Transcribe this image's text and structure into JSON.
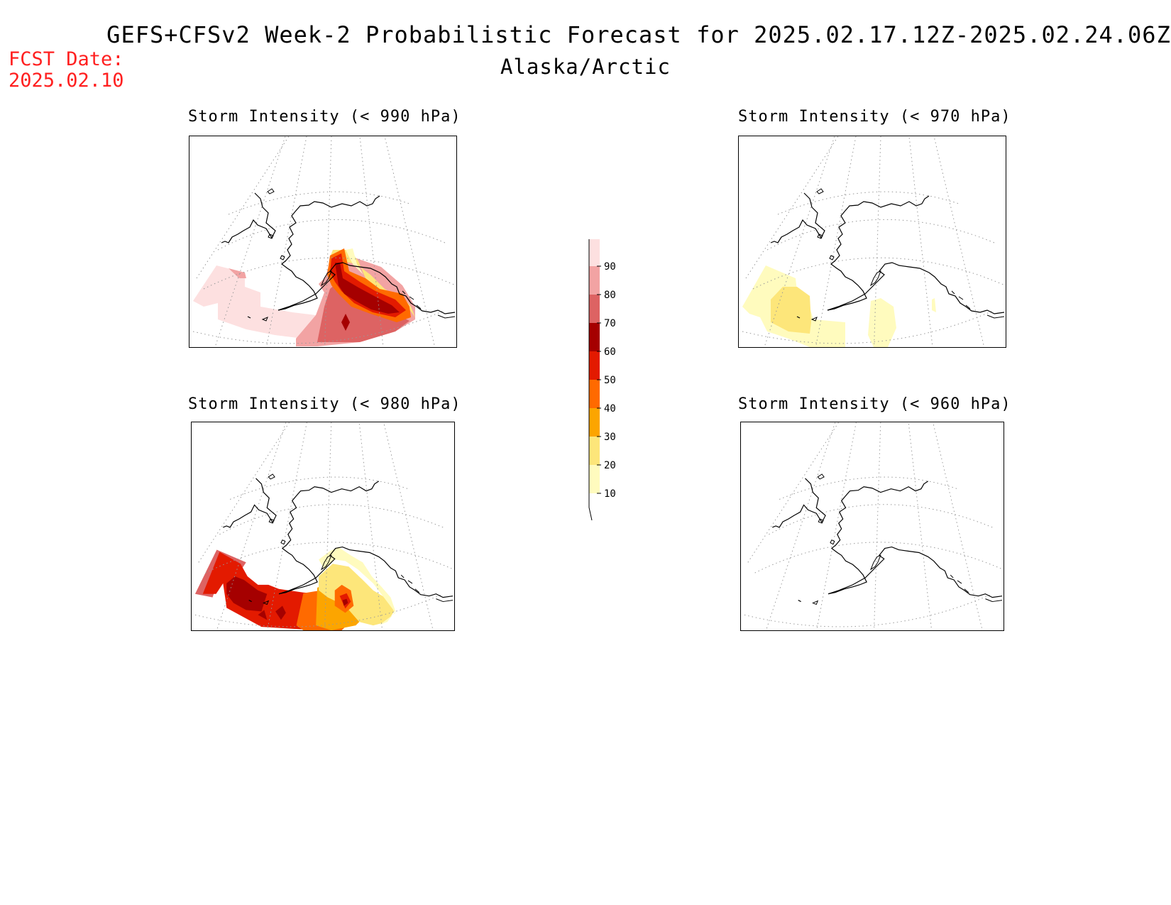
{
  "header": {
    "title": "GEFS+CFSv2 Week-2 Probabilistic Forecast for 2025.02.17.12Z-2025.02.24.06Z",
    "subtitle": "Alaska/Arctic",
    "fcst_label": "FCST Date:",
    "fcst_date": "2025.02.10"
  },
  "panels": [
    {
      "title": "Storm Intensity (< 990 hPa)"
    },
    {
      "title": "Storm Intensity (< 970 hPa)"
    },
    {
      "title": "Storm Intensity (< 980 hPa)"
    },
    {
      "title": "Storm Intensity (< 960 hPa)"
    }
  ],
  "legend": {
    "ticks": [
      "90",
      "80",
      "70",
      "60",
      "50",
      "40",
      "30",
      "20",
      "10"
    ],
    "colors": {
      "10-20": "#fffbbe",
      "20-30": "#fde67a",
      "30-40": "#fca500",
      "40-50": "#ff6a00",
      "50-60": "#e31a00",
      "60-70": "#a50000",
      "70-80": "#dd6363",
      "80-90": "#f2a3a3",
      "90-100": "#fde0e0"
    }
  }
}
